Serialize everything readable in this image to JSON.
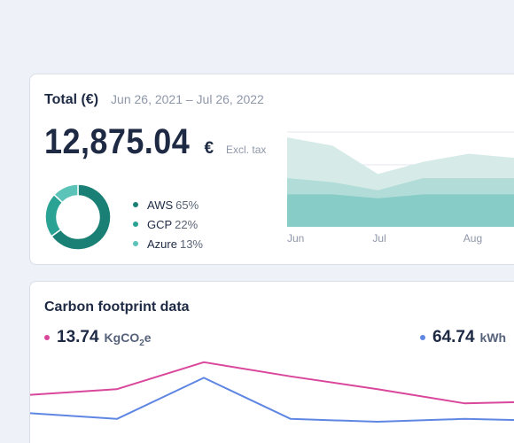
{
  "cost_card": {
    "title": "Total (€)",
    "date_range": "Jun 26, 2021 – Jul 26, 2022",
    "total": "12,875.04",
    "currency_symbol": "€",
    "tax_note": "Excl. tax",
    "legend": [
      {
        "name": "AWS",
        "pct": "65%",
        "color": "#1a7f74"
      },
      {
        "name": "GCP",
        "pct": "22%",
        "color": "#2ba394"
      },
      {
        "name": "Azure",
        "pct": "13%",
        "color": "#5cc3b8"
      }
    ]
  },
  "carbon_card": {
    "title": "Carbon footprint data",
    "co2": {
      "value": "13.74",
      "unit": "KgCO",
      "unit_sub": "2",
      "unit_suffix": "e",
      "color": "#d9479c"
    },
    "kwh": {
      "value": "64.74",
      "unit": "kWh",
      "color": "#6086e4"
    }
  },
  "chart_data": [
    {
      "type": "pie",
      "categories": [
        "AWS",
        "GCP",
        "Azure"
      ],
      "values": [
        65,
        22,
        13
      ],
      "colors": [
        "#1a7f74",
        "#2ba394",
        "#5cc3b8"
      ]
    },
    {
      "type": "area",
      "categories": [
        "Jun",
        "",
        "Jul",
        "",
        "Aug",
        ""
      ],
      "series": [
        {
          "values": [
            22,
            20,
            13,
            16,
            18,
            17
          ],
          "color": "#d6ebe8"
        },
        {
          "values": [
            12,
            11,
            9,
            12,
            12,
            12
          ],
          "color": "#b1dcd8"
        },
        {
          "values": [
            8,
            8,
            7,
            8,
            8,
            8
          ],
          "color": "#87ccc7"
        }
      ],
      "x_tick_labels": [
        "Jun",
        "Jul",
        "Aug"
      ],
      "grid": true
    },
    {
      "type": "line",
      "series": [
        {
          "values": [
            44,
            48,
            67,
            57,
            48,
            38,
            39
          ],
          "color": "#d9479c"
        },
        {
          "values": [
            31,
            27,
            56,
            27,
            25,
            27,
            26
          ],
          "color": "#6086e4"
        }
      ],
      "grid": false
    }
  ]
}
